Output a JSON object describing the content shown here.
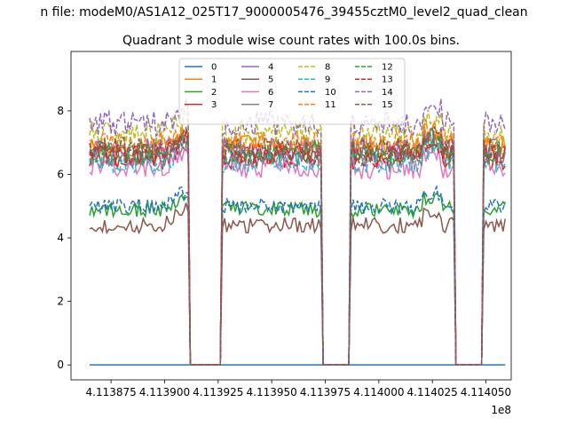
{
  "figure": {
    "suptitle": "n file: modeM0/AS1A12_025T17_9000005476_39455cztM0_level2_quad_clean",
    "title": "Quadrant 3 module wise count rates with 100.0s bins."
  },
  "chart_data": {
    "type": "line",
    "title": "Quadrant 3 module wise count rates with 100.0s bins.",
    "xlabel": "",
    "ylabel": "",
    "x_offset_label": "1e8",
    "xlim": [
      4.1138563,
      4.1140618
    ],
    "ylim": [
      -0.47,
      9.87
    ],
    "x_ticks": [
      4.113875,
      4.1139,
      4.113925,
      4.11395,
      4.113975,
      4.114,
      4.114025,
      4.11405
    ],
    "x_tick_labels": [
      "4.113875",
      "4.113900",
      "4.113925",
      "4.113950",
      "4.113975",
      "4.114000",
      "4.114025",
      "4.114050"
    ],
    "y_ticks": [
      0,
      2,
      4,
      6,
      8
    ],
    "y_tick_labels": [
      "0",
      "2",
      "4",
      "6",
      "8"
    ],
    "grid": false,
    "legend_placement": "top-center",
    "legend_columns": 4,
    "x_range_data": [
      4.113865,
      4.114059
    ],
    "x_step": 1e-06,
    "gaps": [
      [
        4.113912,
        4.113926
      ],
      [
        4.113974,
        4.113986
      ],
      [
        4.114035,
        4.114048
      ]
    ],
    "series": [
      {
        "name": "0",
        "color": "#1f77b4",
        "dash": "solid",
        "typical": 0.0,
        "noise": 0.0,
        "constant": true
      },
      {
        "name": "1",
        "color": "#ff7f0e",
        "dash": "solid",
        "typical": 6.9,
        "noise": 0.35
      },
      {
        "name": "2",
        "color": "#2ca02c",
        "dash": "solid",
        "typical": 4.9,
        "noise": 0.25
      },
      {
        "name": "3",
        "color": "#d62728",
        "dash": "solid",
        "typical": 6.5,
        "noise": 0.35
      },
      {
        "name": "4",
        "color": "#9467bd",
        "dash": "solid",
        "typical": 6.8,
        "noise": 0.35
      },
      {
        "name": "5",
        "color": "#8c564b",
        "dash": "solid",
        "typical": 4.4,
        "noise": 0.25
      },
      {
        "name": "6",
        "color": "#e377c2",
        "dash": "solid",
        "typical": 6.2,
        "noise": 0.35
      },
      {
        "name": "7",
        "color": "#7f7f7f",
        "dash": "solid",
        "typical": 6.6,
        "noise": 0.35
      },
      {
        "name": "8",
        "color": "#bcbd22",
        "dash": "dashed",
        "typical": 7.3,
        "noise": 0.4
      },
      {
        "name": "9",
        "color": "#17becf",
        "dash": "dashed",
        "typical": 6.4,
        "noise": 0.35
      },
      {
        "name": "10",
        "color": "#1f77b4",
        "dash": "dashed",
        "typical": 5.0,
        "noise": 0.25
      },
      {
        "name": "11",
        "color": "#ff7f0e",
        "dash": "dashed",
        "typical": 7.0,
        "noise": 0.35
      },
      {
        "name": "12",
        "color": "#2ca02c",
        "dash": "dashed",
        "typical": 6.7,
        "noise": 0.35
      },
      {
        "name": "13",
        "color": "#d62728",
        "dash": "dashed",
        "typical": 6.6,
        "noise": 0.35
      },
      {
        "name": "14",
        "color": "#9467bd",
        "dash": "dashed",
        "typical": 7.6,
        "noise": 0.4
      },
      {
        "name": "15",
        "color": "#8c564b",
        "dash": "dashed",
        "typical": 6.8,
        "noise": 0.35
      }
    ]
  }
}
